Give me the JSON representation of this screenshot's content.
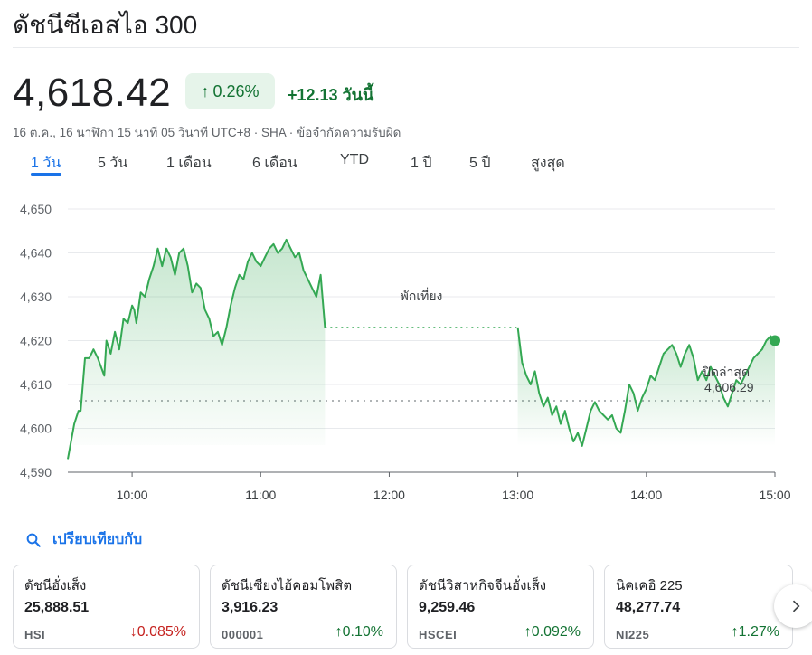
{
  "header": {
    "title": "ดัชนีซีเอสไอ 300"
  },
  "quote": {
    "price": "4,618.42",
    "change_pct": "0.26%",
    "change_abs": "+12.13 วันนี้",
    "meta": "16 ต.ค., 16 นาฬิกา 15 นาที 05 วินาที UTC+8 · SHA · ข้อจำกัดความรับผิด"
  },
  "tabs": [
    {
      "label": "1 วัน",
      "active": true
    },
    {
      "label": "5 วัน"
    },
    {
      "label": "1 เดือน"
    },
    {
      "label": "6 เดือน"
    },
    {
      "label": "YTD"
    },
    {
      "label": "1 ปี"
    },
    {
      "label": "5 ปี"
    },
    {
      "label": "สูงสุด"
    }
  ],
  "colors": {
    "up": "#137333",
    "down": "#c5221f",
    "line": "#34a853",
    "accent": "#1a73e8"
  },
  "chart_data": {
    "type": "area",
    "x_unit": "time (HH:MM)",
    "ylim": [
      4590,
      4650
    ],
    "yticks": [
      "4,650",
      "4,640",
      "4,630",
      "4,620",
      "4,610",
      "4,600",
      "4,590"
    ],
    "xticks": [
      "10:00",
      "11:00",
      "12:00",
      "13:00",
      "14:00",
      "15:00"
    ],
    "xlim": [
      "09:30",
      "15:00"
    ],
    "grid": true,
    "break_label": "พักเที่ยง",
    "previous_close": {
      "label": "ปิดล่าสุด",
      "value_text": "4,606.29",
      "value": 4606.29
    },
    "series": [
      {
        "points": [
          [
            "09:30",
            4593
          ],
          [
            "09:33",
            4601
          ],
          [
            "09:35",
            4604
          ],
          [
            "09:36",
            4604
          ],
          [
            "09:38",
            4616
          ],
          [
            "09:40",
            4616
          ],
          [
            "09:42",
            4618
          ],
          [
            "09:44",
            4616
          ],
          [
            "09:47",
            4612
          ],
          [
            "09:48",
            4620
          ],
          [
            "09:50",
            4617
          ],
          [
            "09:52",
            4622
          ],
          [
            "09:54",
            4618
          ],
          [
            "09:56",
            4625
          ],
          [
            "09:58",
            4624
          ],
          [
            "10:00",
            4628
          ],
          [
            "10:01",
            4627
          ],
          [
            "10:02",
            4624
          ],
          [
            "10:04",
            4631
          ],
          [
            "10:06",
            4630
          ],
          [
            "10:08",
            4634
          ],
          [
            "10:10",
            4637
          ],
          [
            "10:12",
            4641
          ],
          [
            "10:14",
            4637
          ],
          [
            "10:16",
            4641
          ],
          [
            "10:18",
            4639
          ],
          [
            "10:20",
            4635
          ],
          [
            "10:22",
            4640
          ],
          [
            "10:24",
            4641
          ],
          [
            "10:26",
            4637
          ],
          [
            "10:28",
            4631
          ],
          [
            "10:30",
            4633
          ],
          [
            "10:32",
            4632
          ],
          [
            "10:34",
            4627
          ],
          [
            "10:36",
            4625
          ],
          [
            "10:38",
            4621
          ],
          [
            "10:40",
            4622
          ],
          [
            "10:42",
            4619
          ],
          [
            "10:44",
            4623
          ],
          [
            "10:46",
            4628
          ],
          [
            "10:48",
            4632
          ],
          [
            "10:50",
            4635
          ],
          [
            "10:52",
            4634
          ],
          [
            "10:54",
            4638
          ],
          [
            "10:56",
            4640
          ],
          [
            "10:58",
            4638
          ],
          [
            "11:00",
            4637
          ],
          [
            "11:02",
            4639
          ],
          [
            "11:04",
            4641
          ],
          [
            "11:06",
            4642
          ],
          [
            "11:08",
            4640
          ],
          [
            "11:10",
            4641
          ],
          [
            "11:12",
            4643
          ],
          [
            "11:14",
            4641
          ],
          [
            "11:16",
            4639
          ],
          [
            "11:18",
            4640
          ],
          [
            "11:20",
            4636
          ],
          [
            "11:22",
            4634
          ],
          [
            "11:24",
            4632
          ],
          [
            "11:26",
            4630
          ],
          [
            "11:28",
            4635
          ],
          [
            "11:30",
            4623
          ],
          [
            "13:00",
            4623
          ],
          [
            "13:02",
            4615
          ],
          [
            "13:04",
            4612
          ],
          [
            "13:06",
            4610
          ],
          [
            "13:08",
            4613
          ],
          [
            "13:10",
            4608
          ],
          [
            "13:12",
            4605
          ],
          [
            "13:14",
            4607
          ],
          [
            "13:16",
            4603
          ],
          [
            "13:18",
            4605
          ],
          [
            "13:20",
            4601
          ],
          [
            "13:22",
            4604
          ],
          [
            "13:24",
            4600
          ],
          [
            "13:26",
            4597
          ],
          [
            "13:28",
            4599
          ],
          [
            "13:30",
            4596
          ],
          [
            "13:32",
            4600
          ],
          [
            "13:34",
            4604
          ],
          [
            "13:36",
            4606
          ],
          [
            "13:38",
            4604
          ],
          [
            "13:40",
            4603
          ],
          [
            "13:42",
            4602
          ],
          [
            "13:44",
            4603
          ],
          [
            "13:46",
            4600
          ],
          [
            "13:48",
            4599
          ],
          [
            "13:50",
            4604
          ],
          [
            "13:52",
            4610
          ],
          [
            "13:54",
            4608
          ],
          [
            "13:56",
            4604
          ],
          [
            "13:58",
            4607
          ],
          [
            "14:00",
            4609
          ],
          [
            "14:02",
            4612
          ],
          [
            "14:04",
            4611
          ],
          [
            "14:06",
            4614
          ],
          [
            "14:08",
            4617
          ],
          [
            "14:10",
            4618
          ],
          [
            "14:12",
            4619
          ],
          [
            "14:14",
            4617
          ],
          [
            "14:16",
            4614
          ],
          [
            "14:18",
            4617
          ],
          [
            "14:20",
            4619
          ],
          [
            "14:22",
            4616
          ],
          [
            "14:24",
            4611
          ],
          [
            "14:26",
            4613
          ],
          [
            "14:28",
            4611
          ],
          [
            "14:30",
            4614
          ],
          [
            "14:32",
            4612
          ],
          [
            "14:34",
            4610
          ],
          [
            "14:36",
            4607
          ],
          [
            "14:38",
            4605
          ],
          [
            "14:40",
            4608
          ],
          [
            "14:42",
            4611
          ],
          [
            "14:44",
            4610
          ],
          [
            "14:46",
            4612
          ],
          [
            "14:48",
            4614
          ],
          [
            "14:50",
            4616
          ],
          [
            "14:52",
            4617
          ],
          [
            "14:54",
            4618
          ],
          [
            "14:56",
            4620
          ],
          [
            "14:58",
            4621
          ],
          [
            "15:00",
            4620
          ]
        ]
      }
    ]
  },
  "compare": {
    "label": "เปรียบเทียบกับ"
  },
  "cards": [
    {
      "name": "ดัชนีฮั่งเส็ง",
      "value": "25,888.51",
      "ticker": "HSI",
      "arrow": "↓",
      "change": "0.085%",
      "dir": "down"
    },
    {
      "name": "ดัชนีเซียงไฮ้คอมโพสิต",
      "value": "3,916.23",
      "ticker": "000001",
      "arrow": "↑",
      "change": "0.10%",
      "dir": "up"
    },
    {
      "name": "ดัชนีวิสาหกิจจีนฮั่งเส็ง",
      "value": "9,259.46",
      "ticker": "HSCEI",
      "arrow": "↑",
      "change": "0.092%",
      "dir": "up"
    },
    {
      "name": "นิคเคอิ 225",
      "value": "48,277.74",
      "ticker": "NI225",
      "arrow": "↑",
      "change": "1.27%",
      "dir": "up"
    }
  ]
}
